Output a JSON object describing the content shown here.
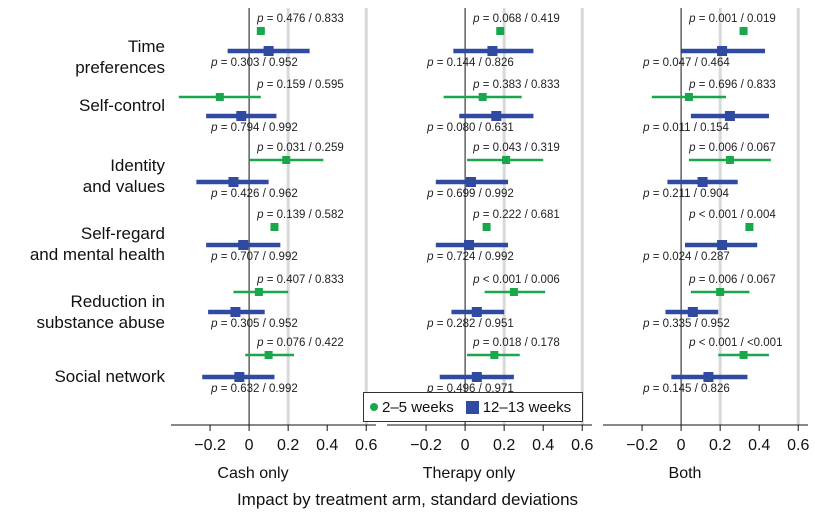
{
  "colors": {
    "early": "#1aa64a",
    "late": "#2f4aa0",
    "grid": "#d9d9d9",
    "zero": "#111111"
  },
  "categories": [
    {
      "line1": "Time",
      "line2": "preferences"
    },
    {
      "line1": "Self-control",
      "line2": ""
    },
    {
      "line1": "Identity",
      "line2": "and values"
    },
    {
      "line1": "Self-regard",
      "line2": "and mental health"
    },
    {
      "line1": "Reduction in",
      "line2": "substance abuse"
    },
    {
      "line1": "Social network",
      "line2": ""
    }
  ],
  "legend": {
    "early": "2–5 weeks",
    "late": "12–13 weeks"
  },
  "x_axis_title": "Impact by treatment arm, standard deviations",
  "chart_data": [
    {
      "type": "forest",
      "title": "Cash only",
      "xlim": [
        -0.4,
        0.65
      ],
      "ticks": [
        "−0.2",
        "0",
        "0.2",
        "0.4",
        "0.6"
      ],
      "tick_values": [
        -0.2,
        0,
        0.2,
        0.4,
        0.6
      ],
      "series": [
        {
          "name": "2–5 weeks",
          "rows": [
            {
              "est": 0.06,
              "lo": 0.05,
              "hi": 0.08,
              "p": "0.476",
              "q": "0.833"
            },
            {
              "est": -0.15,
              "lo": -0.36,
              "hi": 0.06,
              "p": "0.159",
              "q": "0.595"
            },
            {
              "est": 0.19,
              "lo": 0.0,
              "hi": 0.38,
              "p": "0.031",
              "q": "0.259"
            },
            {
              "est": 0.13,
              "lo": 0.12,
              "hi": 0.14,
              "p": "0.139",
              "q": "0.582"
            },
            {
              "est": 0.05,
              "lo": -0.08,
              "hi": 0.2,
              "p": "0.407",
              "q": "0.833"
            },
            {
              "est": 0.1,
              "lo": -0.02,
              "hi": 0.23,
              "p": "0.076",
              "q": "0.422"
            }
          ]
        },
        {
          "name": "12–13 weeks",
          "rows": [
            {
              "est": 0.1,
              "lo": -0.11,
              "hi": 0.31,
              "p": "0.303",
              "q": "0.952"
            },
            {
              "est": -0.04,
              "lo": -0.22,
              "hi": 0.14,
              "p": "0.794",
              "q": "0.992"
            },
            {
              "est": -0.08,
              "lo": -0.27,
              "hi": 0.1,
              "p": "0.426",
              "q": "0.962"
            },
            {
              "est": -0.03,
              "lo": -0.22,
              "hi": 0.16,
              "p": "0.707",
              "q": "0.992"
            },
            {
              "est": -0.07,
              "lo": -0.21,
              "hi": 0.08,
              "p": "0.305",
              "q": "0.952"
            },
            {
              "est": -0.05,
              "lo": -0.24,
              "hi": 0.13,
              "p": "0.632",
              "q": "0.992"
            }
          ]
        }
      ]
    },
    {
      "type": "forest",
      "title": "Therapy only",
      "xlim": [
        -0.4,
        0.65
      ],
      "ticks": [
        "−0.2",
        "0",
        "0.2",
        "0.4",
        "0.6"
      ],
      "tick_values": [
        -0.2,
        0,
        0.2,
        0.4,
        0.6
      ],
      "series": [
        {
          "name": "2–5 weeks",
          "rows": [
            {
              "est": 0.18,
              "lo": 0.17,
              "hi": 0.19,
              "p": "0.068",
              "q": "0.419"
            },
            {
              "est": 0.09,
              "lo": -0.11,
              "hi": 0.29,
              "p": "0.383",
              "q": "0.833"
            },
            {
              "est": 0.21,
              "lo": 0.01,
              "hi": 0.4,
              "p": "0.043",
              "q": "0.319"
            },
            {
              "est": 0.11,
              "lo": 0.1,
              "hi": 0.12,
              "p": "0.222",
              "q": "0.681"
            },
            {
              "est": 0.25,
              "lo": 0.1,
              "hi": 0.41,
              "p": "< 0.001",
              "q": "0.006"
            },
            {
              "est": 0.15,
              "lo": 0.01,
              "hi": 0.28,
              "p": "0.018",
              "q": "0.178"
            }
          ]
        },
        {
          "name": "12–13 weeks",
          "rows": [
            {
              "est": 0.14,
              "lo": -0.06,
              "hi": 0.35,
              "p": "0.144",
              "q": "0.826"
            },
            {
              "est": 0.16,
              "lo": -0.03,
              "hi": 0.35,
              "p": "0.080",
              "q": "0.631"
            },
            {
              "est": 0.03,
              "lo": -0.15,
              "hi": 0.22,
              "p": "0.699",
              "q": "0.992"
            },
            {
              "est": 0.02,
              "lo": -0.15,
              "hi": 0.22,
              "p": "0.724",
              "q": "0.992"
            },
            {
              "est": 0.06,
              "lo": -0.07,
              "hi": 0.2,
              "p": "0.282",
              "q": "0.951"
            },
            {
              "est": 0.06,
              "lo": -0.13,
              "hi": 0.25,
              "p": "0.496",
              "q": "0.971"
            }
          ]
        }
      ]
    },
    {
      "type": "forest",
      "title": "Both",
      "xlim": [
        -0.4,
        0.65
      ],
      "ticks": [
        "−0.2",
        "0",
        "0.2",
        "0.4",
        "0.6"
      ],
      "tick_values": [
        -0.2,
        0,
        0.2,
        0.4,
        0.6
      ],
      "series": [
        {
          "name": "2–5 weeks",
          "rows": [
            {
              "est": 0.32,
              "lo": 0.31,
              "hi": 0.33,
              "p": "0.001",
              "q": "0.019"
            },
            {
              "est": 0.04,
              "lo": -0.15,
              "hi": 0.23,
              "p": "0.696",
              "q": "0.833"
            },
            {
              "est": 0.25,
              "lo": 0.04,
              "hi": 0.46,
              "p": "0.006",
              "q": "0.067"
            },
            {
              "est": 0.35,
              "lo": 0.34,
              "hi": 0.36,
              "p": "< 0.001",
              "q": "0.004"
            },
            {
              "est": 0.2,
              "lo": 0.05,
              "hi": 0.35,
              "p": "0.006",
              "q": "0.067"
            },
            {
              "est": 0.32,
              "lo": 0.19,
              "hi": 0.45,
              "p": "< 0.001",
              "q": "<0.001"
            }
          ]
        },
        {
          "name": "12–13 weeks",
          "rows": [
            {
              "est": 0.21,
              "lo": 0.0,
              "hi": 0.43,
              "p": "0.047",
              "q": "0.464"
            },
            {
              "est": 0.25,
              "lo": 0.05,
              "hi": 0.45,
              "p": "0.011",
              "q": "0.154"
            },
            {
              "est": 0.11,
              "lo": -0.07,
              "hi": 0.29,
              "p": "0.211",
              "q": "0.904"
            },
            {
              "est": 0.21,
              "lo": 0.02,
              "hi": 0.39,
              "p": "0.024",
              "q": "0.287"
            },
            {
              "est": 0.06,
              "lo": -0.08,
              "hi": 0.19,
              "p": "0.335",
              "q": "0.952"
            },
            {
              "est": 0.14,
              "lo": -0.05,
              "hi": 0.34,
              "p": "0.145",
              "q": "0.826"
            }
          ]
        }
      ]
    }
  ]
}
